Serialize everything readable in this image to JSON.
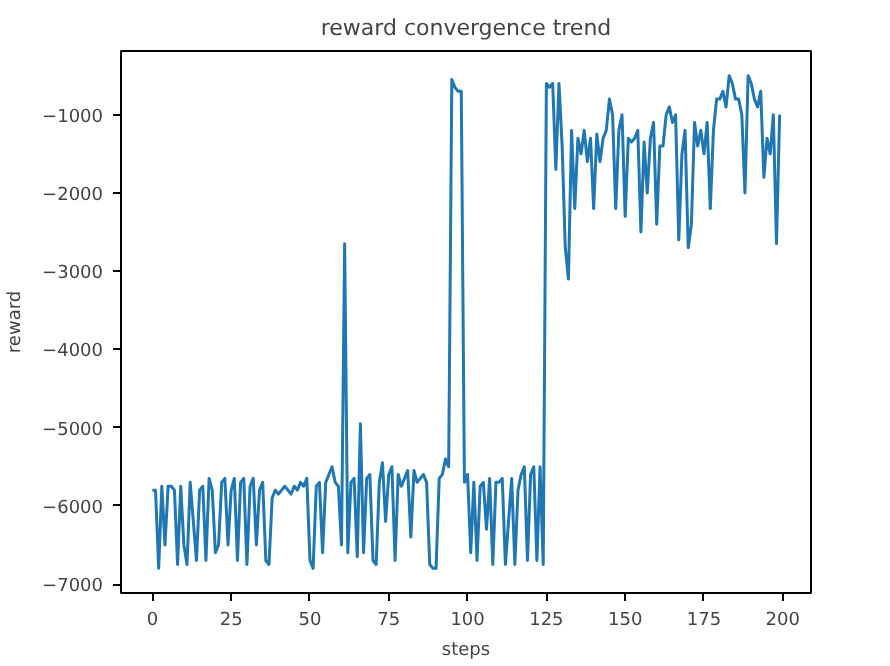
{
  "chart_data": {
    "type": "line",
    "title": "reward convergence trend",
    "xlabel": "steps",
    "ylabel": "reward",
    "xlim": [
      -9.95,
      208.95
    ],
    "ylim": [
      -7115,
      -185
    ],
    "xticks": [
      0,
      25,
      50,
      75,
      100,
      125,
      150,
      175,
      200
    ],
    "yticks": [
      -7000,
      -6000,
      -5000,
      -4000,
      -3000,
      -2000,
      -1000
    ],
    "grid": false,
    "x": [
      0,
      1,
      2,
      3,
      4,
      5,
      6,
      7,
      8,
      9,
      10,
      11,
      12,
      13,
      14,
      15,
      16,
      17,
      18,
      19,
      20,
      21,
      22,
      23,
      24,
      25,
      26,
      27,
      28,
      29,
      30,
      31,
      32,
      33,
      34,
      35,
      36,
      37,
      38,
      39,
      40,
      41,
      42,
      43,
      44,
      45,
      46,
      47,
      48,
      49,
      50,
      51,
      52,
      53,
      54,
      55,
      56,
      57,
      58,
      59,
      60,
      61,
      62,
      63,
      64,
      65,
      66,
      67,
      68,
      69,
      70,
      71,
      72,
      73,
      74,
      75,
      76,
      77,
      78,
      79,
      80,
      81,
      82,
      83,
      84,
      85,
      86,
      87,
      88,
      89,
      90,
      91,
      92,
      93,
      94,
      95,
      96,
      97,
      98,
      99,
      100,
      101,
      102,
      103,
      104,
      105,
      106,
      107,
      108,
      109,
      110,
      111,
      112,
      113,
      114,
      115,
      116,
      117,
      118,
      119,
      120,
      121,
      122,
      123,
      124,
      125,
      126,
      127,
      128,
      129,
      130,
      131,
      132,
      133,
      134,
      135,
      136,
      137,
      138,
      139,
      140,
      141,
      142,
      143,
      144,
      145,
      146,
      147,
      148,
      149,
      150,
      151,
      152,
      153,
      154,
      155,
      156,
      157,
      158,
      159,
      160,
      161,
      162,
      163,
      164,
      165,
      166,
      167,
      168,
      169,
      170,
      171,
      172,
      173,
      174,
      175,
      176,
      177,
      178,
      179,
      180,
      181,
      182,
      183,
      184,
      185,
      186,
      187,
      188,
      189,
      190,
      191,
      192,
      193,
      194,
      195,
      196,
      197,
      198,
      199
    ],
    "series": [
      {
        "color": "#1f77b4",
        "values": [
          -5800,
          -5800,
          -6800,
          -5750,
          -6500,
          -5750,
          -5750,
          -5800,
          -6750,
          -5750,
          -6500,
          -6750,
          -5700,
          -6200,
          -6700,
          -5800,
          -5750,
          -6700,
          -5650,
          -5800,
          -6600,
          -6500,
          -5700,
          -5650,
          -6500,
          -5800,
          -5650,
          -6700,
          -5700,
          -5650,
          -6750,
          -5750,
          -5650,
          -6500,
          -5800,
          -5700,
          -6700,
          -6750,
          -5900,
          -5800,
          -5850,
          -5800,
          -5750,
          -5800,
          -5850,
          -5750,
          -5800,
          -5700,
          -5750,
          -5650,
          -6700,
          -6800,
          -5750,
          -5700,
          -6600,
          -5700,
          -5600,
          -5500,
          -5700,
          -5750,
          -6500,
          -2650,
          -6600,
          -5700,
          -5650,
          -6650,
          -4950,
          -6600,
          -5650,
          -5600,
          -6700,
          -6750,
          -5700,
          -5450,
          -6200,
          -5600,
          -5500,
          -6700,
          -5600,
          -5750,
          -5650,
          -5550,
          -6400,
          -5550,
          -5700,
          -5650,
          -5600,
          -5700,
          -6750,
          -6800,
          -6800,
          -5650,
          -5600,
          -5400,
          -5500,
          -550,
          -650,
          -700,
          -700,
          -5700,
          -5600,
          -6600,
          -5700,
          -6700,
          -5750,
          -5700,
          -6300,
          -5650,
          -6750,
          -5700,
          -5700,
          -5650,
          -6750,
          -6200,
          -5650,
          -6750,
          -5800,
          -5600,
          -5500,
          -6700,
          -5600,
          -5500,
          -6700,
          -5500,
          -6750,
          -600,
          -650,
          -600,
          -1700,
          -600,
          -1400,
          -2700,
          -3100,
          -1200,
          -2200,
          -1300,
          -1500,
          -1200,
          -1600,
          -1300,
          -2200,
          -1250,
          -1600,
          -1300,
          -1200,
          -800,
          -1000,
          -2200,
          -1200,
          -1000,
          -2300,
          -1300,
          -1350,
          -1300,
          -1200,
          -2500,
          -1350,
          -2000,
          -1300,
          -1100,
          -2400,
          -1400,
          -1400,
          -1000,
          -900,
          -1100,
          -1000,
          -2600,
          -1500,
          -1200,
          -2700,
          -2400,
          -1100,
          -1400,
          -1200,
          -1500,
          -1100,
          -2200,
          -1200,
          -800,
          -800,
          -700,
          -900,
          -500,
          -600,
          -800,
          -800,
          -1000,
          -2000,
          -500,
          -600,
          -800,
          -900,
          -700,
          -1800,
          -1300,
          -1500,
          -1000,
          -2650,
          -1000
        ]
      }
    ]
  }
}
